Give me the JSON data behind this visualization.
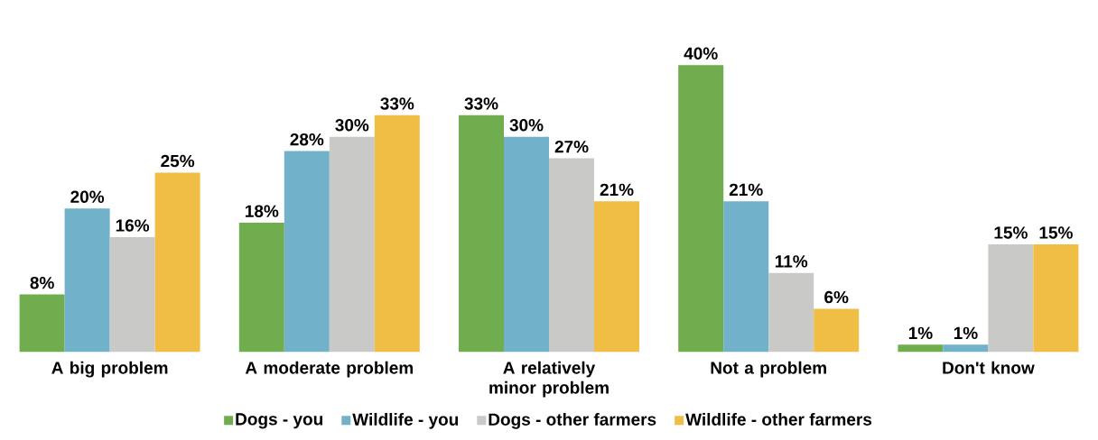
{
  "chart_data": {
    "type": "bar",
    "categories": [
      "A big problem",
      "A moderate problem",
      "A relatively minor problem",
      "Not a problem",
      "Don't know"
    ],
    "series": [
      {
        "name": "Dogs - you",
        "color": "#70ad4e",
        "values": [
          8,
          18,
          33,
          40,
          1
        ],
        "value_labels": [
          "8%",
          "18%",
          "33%",
          "40%",
          "1%"
        ]
      },
      {
        "name": "Wildlife - you",
        "color": "#71b1c9",
        "values": [
          20,
          28,
          30,
          21,
          1
        ],
        "value_labels": [
          "20%",
          "28%",
          "30%",
          "21%",
          "1%"
        ]
      },
      {
        "name": "Dogs - other farmers",
        "color": "#c9c9c7",
        "values": [
          16,
          30,
          27,
          11,
          15
        ],
        "value_labels": [
          "16%",
          "30%",
          "27%",
          "11%",
          "15%"
        ]
      },
      {
        "name": "Wildlife - other farmers",
        "color": "#f0bd45",
        "values": [
          25,
          33,
          21,
          6,
          15
        ],
        "value_labels": [
          "25%",
          "33%",
          "21%",
          "6%",
          "15%"
        ]
      }
    ],
    "legend": "bottom"
  }
}
